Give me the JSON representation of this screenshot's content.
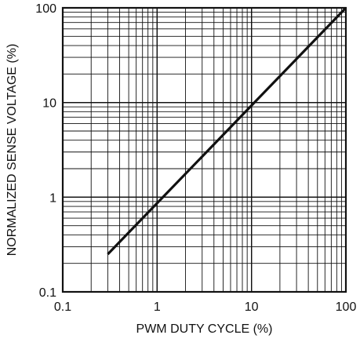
{
  "chart_data": {
    "type": "line",
    "title": "",
    "xlabel": "PWM DUTY CYCLE (%)",
    "ylabel": "NORMALIZED SENSE VOLTAGE (%)",
    "x_scale": "log",
    "y_scale": "log",
    "xlim": [
      0.1,
      100
    ],
    "ylim": [
      0.1,
      100
    ],
    "grid": true,
    "x_ticks": [
      {
        "value": 0.1,
        "label": "0.1"
      },
      {
        "value": 1,
        "label": "1"
      },
      {
        "value": 10,
        "label": "10"
      },
      {
        "value": 100,
        "label": "100"
      }
    ],
    "y_ticks": [
      {
        "value": 0.1,
        "label": "0.1"
      },
      {
        "value": 1,
        "label": "1"
      },
      {
        "value": 10,
        "label": "10"
      },
      {
        "value": 100,
        "label": "100"
      }
    ],
    "series": [
      {
        "color": "#111111",
        "x": [
          0.3,
          100
        ],
        "y": [
          0.25,
          100
        ]
      }
    ]
  }
}
